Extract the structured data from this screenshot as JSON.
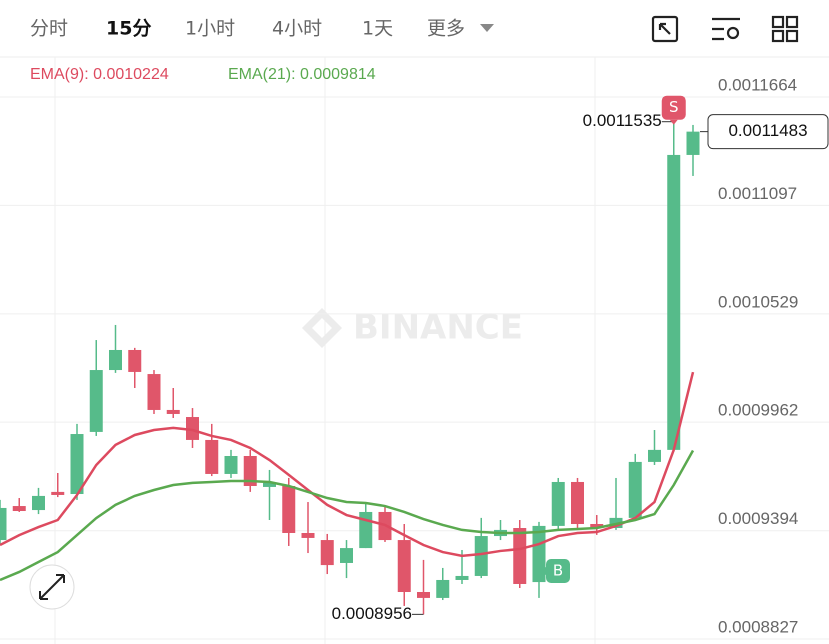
{
  "toolbar": {
    "tabs": [
      "分时",
      "15分",
      "1小时",
      "4小时",
      "1天",
      "更多"
    ],
    "active_tab": 1
  },
  "chart_data": {
    "type": "candlestick",
    "open": [
      0.0009345,
      0.0009523,
      0.0009502,
      0.0009597,
      0.0009586,
      0.0009911,
      0.0010235,
      0.001034,
      0.0010214,
      0.0010026,
      0.0009989,
      0.0009869,
      0.0009691,
      0.0009785,
      0.0009623,
      0.0009628,
      0.0009382,
      0.0009345,
      0.0009225,
      0.0009303,
      0.0009492,
      0.0009345,
      0.0009073,
      0.0009042,
      0.0009136,
      0.0009157,
      0.0009366,
      0.0009408,
      0.0009125,
      0.0009419,
      0.0009649,
      0.0009429,
      0.0009408,
      0.0009461,
      0.0009754,
      0.0009817,
      0.0011361
    ],
    "high": [
      0.0009555,
      0.0009565,
      0.0009618,
      0.0009696,
      0.0009953,
      0.0010392,
      0.0010471,
      0.0010351,
      0.0010235,
      0.0010141,
      0.0010036,
      0.0009953,
      0.0009817,
      0.0009817,
      0.0009712,
      0.000967,
      0.0009544,
      0.0009377,
      0.0009345,
      0.0009544,
      0.0009523,
      0.0009429,
      0.0009241,
      0.0009199,
      0.0009293,
      0.0009461,
      0.000945,
      0.000945,
      0.000944,
      0.000967,
      0.000967,
      0.0009476,
      0.000967,
      0.0009796,
      0.0009921,
      0.0011535,
      0.0011518
    ],
    "low": [
      0.0009319,
      0.0009492,
      0.0009481,
      0.000957,
      0.0009555,
      0.000989,
      0.001022,
      0.0010141,
      0.0010005,
      0.0009984,
      0.0009827,
      0.000968,
      0.000967,
      0.0009597,
      0.000945,
      0.0009314,
      0.0009277,
      0.0009167,
      0.0009146,
      0.0009303,
      0.0009335,
      0.0009,
      0.0008956,
      0.0009031,
      0.0009115,
      0.0009146,
      0.0009345,
      0.0009094,
      0.0009042,
      0.0009398,
      0.0009398,
      0.0009372,
      0.0009398,
      0.000945,
      0.0009738,
      0.0009806,
      0.0011251
    ],
    "close": [
      0.0009513,
      0.0009497,
      0.0009576,
      0.0009581,
      0.00099,
      0.0010235,
      0.001034,
      0.0010225,
      0.0010026,
      0.0010005,
      0.0009869,
      0.0009691,
      0.0009785,
      0.0009628,
      0.0009644,
      0.0009382,
      0.0009356,
      0.0009214,
      0.0009303,
      0.0009492,
      0.0009345,
      0.0009073,
      0.0009042,
      0.0009136,
      0.0009157,
      0.0009366,
      0.0009398,
      0.0009115,
      0.0009419,
      0.0009649,
      0.0009429,
      0.0009408,
      0.0009461,
      0.0009754,
      0.0009817,
      0.0011361,
      0.0011483
    ],
    "up_color": "#56bb8a",
    "down_color": "#e0566a",
    "series": [
      {
        "name": "EMA(9): 0.0010224",
        "color": "#dd4a5f",
        "values": [
          0.0009319,
          0.0009371,
          0.0009413,
          0.000945,
          0.0009581,
          0.0009738,
          0.0009843,
          0.0009895,
          0.0009921,
          0.0009932,
          0.0009921,
          0.000989,
          0.0009869,
          0.0009827,
          0.0009764,
          0.0009686,
          0.0009607,
          0.0009529,
          0.0009476,
          0.000945,
          0.0009424,
          0.0009371,
          0.0009319,
          0.0009282,
          0.0009262,
          0.0009272,
          0.0009288,
          0.0009298,
          0.0009324,
          0.0009366,
          0.0009382,
          0.0009387,
          0.0009419,
          0.000946,
          0.0009544,
          0.0009817,
          0.0010224
        ]
      },
      {
        "name": "EMA(21): 0.0009814",
        "color": "#5aa94f",
        "values": [
          0.0009136,
          0.0009178,
          0.000923,
          0.0009282,
          0.0009371,
          0.000946,
          0.0009529,
          0.0009576,
          0.0009607,
          0.0009633,
          0.0009644,
          0.0009649,
          0.0009654,
          0.0009654,
          0.0009649,
          0.0009628,
          0.0009597,
          0.0009565,
          0.0009544,
          0.0009539,
          0.0009523,
          0.0009492,
          0.0009455,
          0.0009424,
          0.0009398,
          0.0009387,
          0.0009382,
          0.0009382,
          0.0009387,
          0.0009398,
          0.0009403,
          0.0009408,
          0.0009429,
          0.000945,
          0.0009481,
          0.0009633,
          0.0009814
        ]
      }
    ],
    "ylim": [
      0.0008827,
      0.0011858
    ],
    "yticks": [
      0.0008827,
      0.0009394,
      0.0009962,
      0.0010529,
      0.0011097,
      0.0011664
    ],
    "grid": true,
    "watermark": "BINANCE",
    "annotations": {
      "high": 0.0011535,
      "low": 0.0008956,
      "last": 0.0011483
    },
    "signals": [
      {
        "label": "S",
        "color": "#e0566a"
      },
      {
        "label": "B",
        "color": "#56bb8a"
      }
    ]
  }
}
